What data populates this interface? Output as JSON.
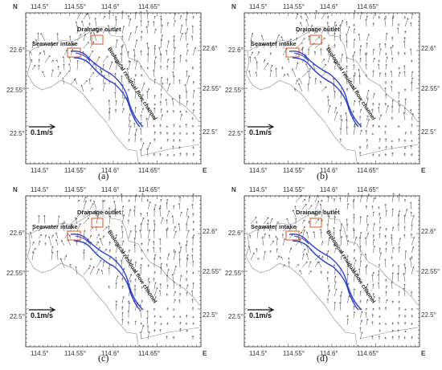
{
  "figure": {
    "panels": [
      {
        "caption": "(a)"
      },
      {
        "caption": "(b)"
      },
      {
        "caption": "(c)"
      },
      {
        "caption": "(d)"
      }
    ],
    "lon_ticks": [
      "114.5°",
      "114.55°",
      "114.6°",
      "114.65°"
    ],
    "lat_ticks_left": [
      "22.6°",
      "22.55°",
      "22.5°"
    ],
    "lat_ticks_right": [
      "22.6°",
      "22.55°",
      "22.5°"
    ],
    "north_label": "N",
    "east_label": "E",
    "labels": {
      "drainage_outlet": "Drainage outlet",
      "seawater_intake": "Seawater intake",
      "channel": "Biological residual flow channel",
      "scale": "0.1m/s"
    },
    "colors": {
      "channel": "#2b3fd6",
      "boxes": "#e06030",
      "arrows": "#444444",
      "coast": "#888888"
    }
  }
}
